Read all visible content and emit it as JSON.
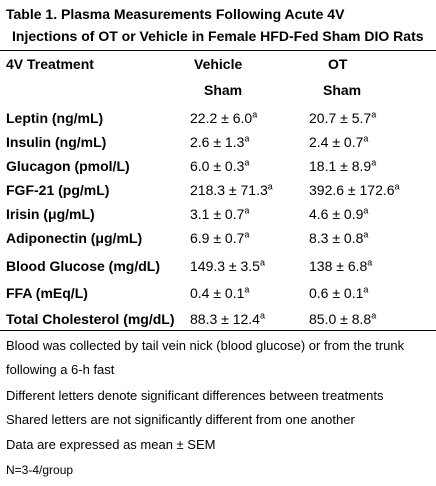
{
  "table": {
    "title": "Table 1.   Plasma Measurements Following Acute 4V",
    "subtitle": "Injections of OT or Vehicle in Female HFD-Fed Sham DIO Rats",
    "headers": [
      "4V Treatment",
      "Vehicle",
      "OT"
    ],
    "subheaders": [
      "Sham",
      "Sham"
    ],
    "rows": [
      {
        "label": "Leptin (ng/mL)",
        "vehicle": "22.2 ± 6.0",
        "vehicle_sup": "a",
        "ot": "20.7 ± 5.7",
        "ot_sup": "a"
      },
      {
        "label": "Insulin (ng/mL)",
        "vehicle": "2.6 ± 1.3",
        "vehicle_sup": "a",
        "ot": "2.4 ± 0.7",
        "ot_sup": "a"
      },
      {
        "label": "Glucagon (pmol/L)",
        "vehicle": "6.0 ± 0.3",
        "vehicle_sup": "a",
        "ot": "18.1 ± 8.9",
        "ot_sup": "a"
      },
      {
        "label": "FGF-21 (pg/mL)",
        "vehicle": "218.3 ± 71.3",
        "vehicle_sup": "a",
        "ot": "392.6 ± 172.6",
        "ot_sup": "a"
      },
      {
        "label": "Irisin (μg/mL)",
        "vehicle": "3.1 ± 0.7",
        "vehicle_sup": "a",
        "ot": "4.6 ± 0.9",
        "ot_sup": "a"
      },
      {
        "label": "Adiponectin (μg/mL)",
        "vehicle": "6.9 ± 0.7",
        "vehicle_sup": "a",
        "ot": "8.3 ± 0.8",
        "ot_sup": "a"
      },
      {
        "label": "Blood Glucose (mg/dL)",
        "vehicle": "149.3 ± 3.5",
        "vehicle_sup": "a",
        "ot": "138 ± 6.8",
        "ot_sup": "a"
      },
      {
        "label": "FFA (mEq/L)",
        "vehicle": "0.4 ± 0.1",
        "vehicle_sup": "a",
        "ot": "0.6 ± 0.1",
        "ot_sup": "a"
      },
      {
        "label": "Total Cholesterol (mg/dL)",
        "vehicle": "88.3 ± 12.4",
        "vehicle_sup": "a",
        "ot": "85.0 ± 8.8",
        "ot_sup": "a"
      }
    ]
  },
  "notes": [
    "Blood was collected by tail vein nick (blood glucose) or from the trunk",
    "following a 6-h fast",
    "Different letters denote significant differences between treatments",
    "Shared letters are not significantly different from one another",
    "Data are expressed as mean ± SEM",
    "N=3-4/group"
  ]
}
